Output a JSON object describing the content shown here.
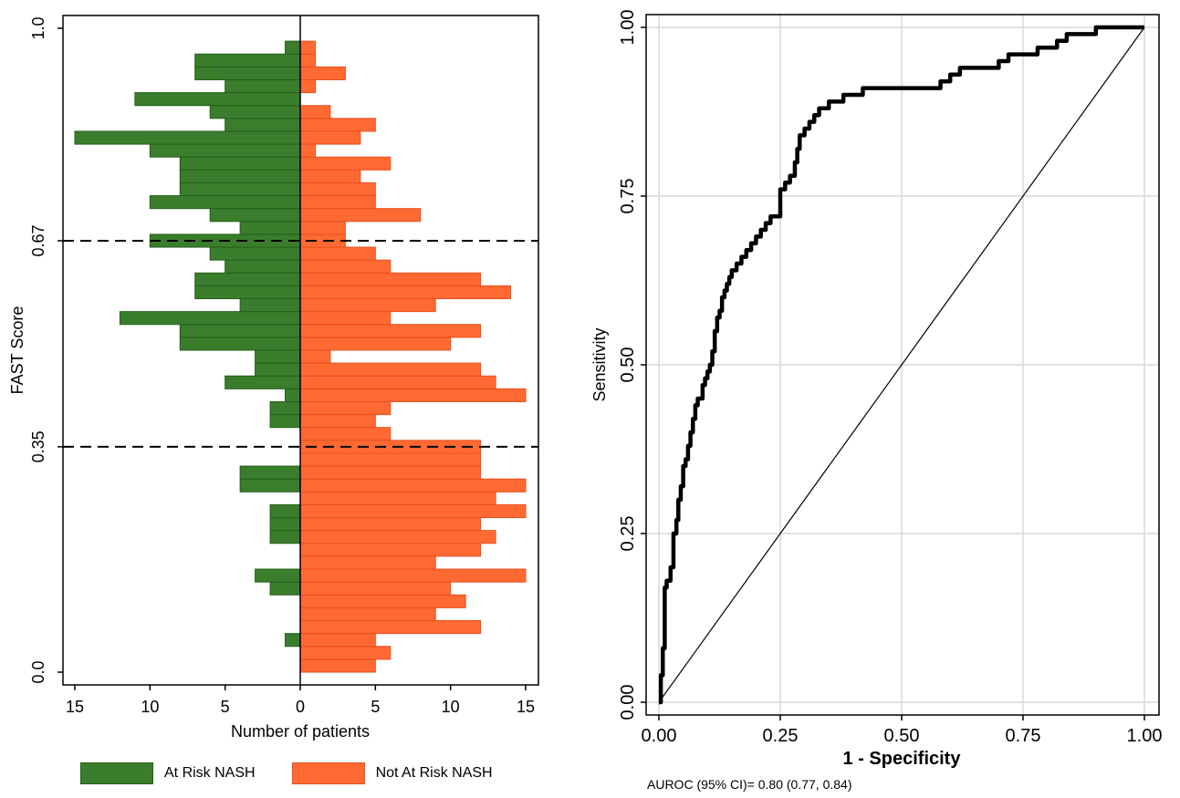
{
  "chart_data": [
    {
      "type": "bar",
      "orientation": "horizontal",
      "layout": "back-to-back population pyramid",
      "ylabel": "FAST Score",
      "xlabel": "Number of patients",
      "yticks": [
        0.0,
        0.35,
        0.67,
        1.0
      ],
      "ytick_labels": [
        "0.0",
        "0.35",
        "0.67",
        "1.0"
      ],
      "ylim": [
        0,
        1
      ],
      "xticks": [
        15,
        10,
        5,
        0,
        5,
        10,
        15
      ],
      "xtick_labels": [
        "15",
        "10",
        "5",
        "0",
        "5",
        "10",
        "15"
      ],
      "xlim": [
        -15,
        15
      ],
      "reference_lines": [
        0.35,
        0.67
      ],
      "bin_width": 0.02,
      "bin_starts": [
        0.0,
        0.02,
        0.04,
        0.06,
        0.08,
        0.1,
        0.12,
        0.14,
        0.16,
        0.18,
        0.2,
        0.22,
        0.24,
        0.26,
        0.28,
        0.3,
        0.32,
        0.34,
        0.36,
        0.38,
        0.4,
        0.42,
        0.44,
        0.46,
        0.48,
        0.5,
        0.52,
        0.54,
        0.56,
        0.58,
        0.6,
        0.62,
        0.64,
        0.66,
        0.68,
        0.7,
        0.72,
        0.74,
        0.76,
        0.78,
        0.8,
        0.82,
        0.84,
        0.86,
        0.88,
        0.9,
        0.92,
        0.94,
        0.96
      ],
      "series": [
        {
          "name": "At Risk NASH",
          "side": "left",
          "color": "#3a7d2c",
          "values": [
            0,
            0,
            1,
            0,
            0,
            0,
            2,
            3,
            0,
            0,
            2,
            2,
            2,
            0,
            4,
            4,
            0,
            0,
            0,
            2,
            2,
            1,
            5,
            3,
            3,
            8,
            8,
            12,
            4,
            7,
            7,
            5,
            6,
            10,
            4,
            6,
            10,
            8,
            8,
            8,
            10,
            15,
            5,
            6,
            11,
            5,
            7,
            7,
            1
          ]
        },
        {
          "name": "Not At Risk NASH",
          "side": "right",
          "color": "#ff6a33",
          "values": [
            5,
            6,
            5,
            12,
            9,
            11,
            10,
            15,
            9,
            12,
            13,
            12,
            15,
            13,
            15,
            12,
            12,
            12,
            6,
            5,
            6,
            15,
            13,
            12,
            2,
            10,
            12,
            6,
            9,
            14,
            12,
            6,
            5,
            3,
            3,
            8,
            5,
            5,
            4,
            6,
            1,
            4,
            5,
            2,
            0,
            1,
            3,
            1,
            1
          ]
        }
      ]
    },
    {
      "type": "line",
      "xlabel": "1 - Specificity",
      "ylabel": "Sensitivity",
      "xlim": [
        0,
        1
      ],
      "ylim": [
        0,
        1
      ],
      "xticks": [
        0.0,
        0.25,
        0.5,
        0.75,
        1.0
      ],
      "xtick_labels": [
        "0.00",
        "0.25",
        "0.50",
        "0.75",
        "1.00"
      ],
      "yticks": [
        0.0,
        0.25,
        0.5,
        0.75,
        1.0
      ],
      "ytick_labels": [
        "0.00",
        "0.25",
        "0.50",
        "0.75",
        "1.00"
      ],
      "grid": true,
      "annotation": "AUROC (95% CI)= 0.80 (0.77, 0.84)",
      "series": [
        {
          "role": "roc-curve",
          "x": [
            0.0,
            0.004,
            0.008,
            0.012,
            0.016,
            0.024,
            0.03,
            0.036,
            0.04,
            0.045,
            0.05,
            0.055,
            0.06,
            0.065,
            0.07,
            0.075,
            0.08,
            0.09,
            0.095,
            0.1,
            0.105,
            0.11,
            0.115,
            0.12,
            0.125,
            0.13,
            0.135,
            0.14,
            0.145,
            0.15,
            0.16,
            0.17,
            0.18,
            0.19,
            0.2,
            0.21,
            0.22,
            0.23,
            0.24,
            0.25,
            0.26,
            0.27,
            0.28,
            0.285,
            0.29,
            0.3,
            0.31,
            0.32,
            0.33,
            0.34,
            0.35,
            0.36,
            0.37,
            0.38,
            0.4,
            0.42,
            0.45,
            0.48,
            0.5,
            0.55,
            0.58,
            0.6,
            0.62,
            0.65,
            0.7,
            0.72,
            0.75,
            0.78,
            0.8,
            0.82,
            0.84,
            0.86,
            0.88,
            0.9,
            0.92,
            0.95,
            1.0
          ],
          "y": [
            0.0,
            0.04,
            0.08,
            0.17,
            0.18,
            0.2,
            0.25,
            0.27,
            0.3,
            0.32,
            0.35,
            0.36,
            0.38,
            0.4,
            0.42,
            0.44,
            0.45,
            0.47,
            0.48,
            0.49,
            0.5,
            0.52,
            0.55,
            0.57,
            0.58,
            0.6,
            0.61,
            0.62,
            0.63,
            0.64,
            0.65,
            0.66,
            0.67,
            0.68,
            0.69,
            0.7,
            0.71,
            0.72,
            0.72,
            0.76,
            0.77,
            0.78,
            0.8,
            0.82,
            0.84,
            0.85,
            0.86,
            0.87,
            0.88,
            0.88,
            0.89,
            0.89,
            0.89,
            0.9,
            0.9,
            0.91,
            0.91,
            0.91,
            0.91,
            0.91,
            0.92,
            0.93,
            0.94,
            0.94,
            0.95,
            0.96,
            0.96,
            0.97,
            0.97,
            0.98,
            0.99,
            0.99,
            0.99,
            1.0,
            1.0,
            1.0,
            1.0
          ]
        },
        {
          "role": "reference-diagonal",
          "x": [
            0,
            1
          ],
          "y": [
            0,
            1
          ]
        }
      ]
    }
  ]
}
